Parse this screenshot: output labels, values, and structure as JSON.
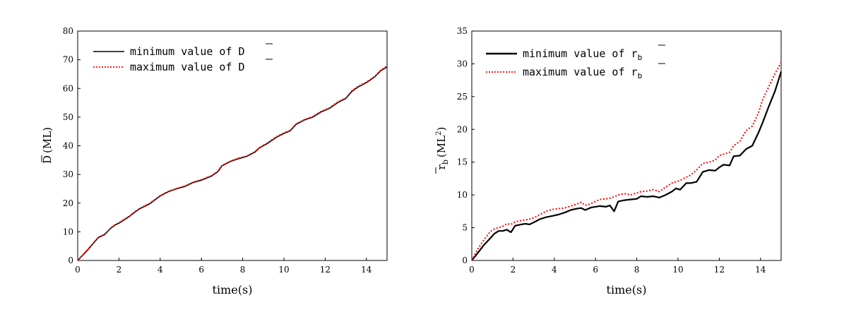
{
  "chart_data": [
    {
      "type": "line",
      "xlabel": "time(s)",
      "ylabel": "D (ML)",
      "ylabel_symbol": "D",
      "ylabel_unit": "(ML)",
      "xlim": [
        0,
        15
      ],
      "ylim": [
        0,
        80
      ],
      "xticks": [
        0,
        2,
        4,
        6,
        8,
        10,
        12,
        14
      ],
      "yticks": [
        0,
        10,
        20,
        30,
        40,
        50,
        60,
        70,
        80
      ],
      "grid": false,
      "legend_position": "top-left",
      "series": [
        {
          "name": "minimum value of D",
          "color": "#000000",
          "style": "solid",
          "x": [
            0,
            0.5,
            1.0,
            1.3,
            1.6,
            1.8,
            2.0,
            2.5,
            2.8,
            3.0,
            3.5,
            4.0,
            4.4,
            4.8,
            5.2,
            5.6,
            6.0,
            6.5,
            6.8,
            7.0,
            7.4,
            7.8,
            8.2,
            8.6,
            8.8,
            9.2,
            9.6,
            10.0,
            10.3,
            10.6,
            11.0,
            11.4,
            11.8,
            12.2,
            12.6,
            13.0,
            13.3,
            13.6,
            14.0,
            14.4,
            14.7,
            15.0
          ],
          "y": [
            0,
            3.8,
            8.0,
            9.0,
            11.2,
            12.3,
            13.0,
            15.3,
            17.0,
            18.0,
            19.8,
            22.5,
            24.0,
            25.0,
            25.8,
            27.2,
            28.0,
            29.5,
            31.0,
            33.0,
            34.5,
            35.5,
            36.3,
            37.8,
            39.2,
            40.8,
            42.8,
            44.3,
            45.2,
            47.5,
            49.0,
            50.0,
            51.8,
            53.0,
            55.0,
            56.5,
            59.0,
            60.5,
            62.0,
            64.0,
            66.2,
            67.5
          ]
        },
        {
          "name": "maximum value of D",
          "color": "#ff0000",
          "style": "dotted",
          "x": [
            0,
            0.5,
            1.0,
            1.3,
            1.6,
            1.8,
            2.0,
            2.5,
            2.8,
            3.0,
            3.5,
            4.0,
            4.4,
            4.8,
            5.2,
            5.6,
            6.0,
            6.5,
            6.8,
            7.0,
            7.4,
            7.8,
            8.2,
            8.6,
            8.8,
            9.2,
            9.6,
            10.0,
            10.3,
            10.6,
            11.0,
            11.4,
            11.8,
            12.2,
            12.6,
            13.0,
            13.3,
            13.6,
            14.0,
            14.4,
            14.7,
            15.0
          ],
          "y": [
            0,
            3.9,
            8.1,
            9.1,
            11.3,
            12.4,
            13.2,
            15.4,
            17.2,
            18.1,
            20.0,
            22.6,
            24.1,
            25.1,
            26.0,
            27.3,
            28.2,
            29.6,
            31.2,
            33.2,
            34.6,
            35.7,
            36.4,
            38.0,
            39.3,
            41.0,
            43.0,
            44.5,
            45.3,
            47.7,
            49.1,
            50.2,
            52.0,
            53.2,
            55.2,
            56.7,
            59.2,
            60.7,
            62.2,
            64.2,
            66.4,
            67.8
          ]
        }
      ]
    },
    {
      "type": "line",
      "xlabel": "time(s)",
      "ylabel": "r_b (ML^2)",
      "ylabel_symbol": "r",
      "ylabel_sub": "b",
      "ylabel_unit_base": "(ML",
      "ylabel_unit_sup": "2",
      "ylabel_unit_close": ")",
      "xlim": [
        0,
        15
      ],
      "ylim": [
        0,
        35
      ],
      "xticks": [
        0,
        2,
        4,
        6,
        8,
        10,
        12,
        14
      ],
      "yticks": [
        0,
        5,
        10,
        15,
        20,
        25,
        30,
        35
      ],
      "grid": false,
      "legend_position": "top-left",
      "series": [
        {
          "name": "minimum value of r_b",
          "color": "#000000",
          "style": "solid",
          "x": [
            0,
            0.3,
            0.6,
            0.9,
            1.1,
            1.3,
            1.5,
            1.7,
            1.9,
            2.1,
            2.4,
            2.6,
            2.8,
            3.0,
            3.3,
            3.6,
            3.9,
            4.2,
            4.5,
            4.8,
            5.1,
            5.3,
            5.5,
            5.8,
            6.0,
            6.2,
            6.5,
            6.7,
            6.9,
            7.1,
            7.4,
            7.7,
            8.0,
            8.2,
            8.5,
            8.8,
            9.1,
            9.4,
            9.7,
            9.9,
            10.1,
            10.4,
            10.6,
            10.9,
            11.2,
            11.5,
            11.8,
            12.0,
            12.2,
            12.5,
            12.7,
            13.0,
            13.3,
            13.6,
            13.9,
            14.1,
            14.4,
            14.7,
            15.0
          ],
          "y": [
            0,
            1.2,
            2.4,
            3.4,
            4.1,
            4.5,
            4.5,
            4.7,
            4.3,
            5.3,
            5.5,
            5.6,
            5.5,
            5.8,
            6.3,
            6.6,
            6.8,
            7.0,
            7.3,
            7.7,
            7.9,
            8.0,
            7.7,
            8.1,
            8.2,
            8.3,
            8.2,
            8.4,
            7.5,
            9.0,
            9.2,
            9.3,
            9.4,
            9.8,
            9.7,
            9.8,
            9.6,
            10.0,
            10.5,
            11.0,
            10.8,
            11.8,
            11.8,
            12.0,
            13.5,
            13.8,
            13.7,
            14.2,
            14.6,
            14.5,
            15.9,
            16.0,
            17.0,
            17.5,
            19.5,
            21.0,
            23.5,
            25.8,
            28.8
          ]
        },
        {
          "name": "maximum value of r_b",
          "color": "#ff0000",
          "style": "dotted",
          "x": [
            0,
            0.3,
            0.6,
            0.9,
            1.1,
            1.3,
            1.5,
            1.7,
            1.9,
            2.1,
            2.4,
            2.6,
            2.8,
            3.0,
            3.3,
            3.6,
            3.9,
            4.2,
            4.5,
            4.8,
            5.1,
            5.3,
            5.5,
            5.8,
            6.0,
            6.2,
            6.5,
            6.7,
            6.9,
            7.1,
            7.4,
            7.7,
            8.0,
            8.2,
            8.5,
            8.8,
            9.1,
            9.4,
            9.7,
            9.9,
            10.1,
            10.4,
            10.6,
            10.9,
            11.2,
            11.5,
            11.8,
            12.0,
            12.2,
            12.5,
            12.7,
            13.0,
            13.3,
            13.6,
            13.9,
            14.1,
            14.4,
            14.7,
            15.0
          ],
          "y": [
            0,
            1.8,
            3.2,
            4.4,
            4.8,
            5.0,
            5.2,
            5.6,
            5.5,
            5.9,
            6.1,
            6.2,
            6.3,
            6.5,
            7.0,
            7.5,
            7.8,
            7.9,
            8.0,
            8.3,
            8.6,
            8.9,
            8.4,
            8.7,
            9.0,
            9.3,
            9.4,
            9.5,
            9.7,
            10.0,
            10.2,
            10.0,
            10.3,
            10.5,
            10.6,
            10.8,
            10.5,
            11.2,
            11.8,
            12.0,
            12.2,
            12.7,
            13.0,
            13.8,
            14.8,
            15.0,
            15.3,
            16.0,
            16.2,
            16.5,
            17.5,
            18.2,
            19.8,
            20.5,
            22.5,
            24.5,
            26.5,
            28.5,
            30.2
          ]
        }
      ]
    }
  ],
  "legend": {
    "left_min_prefix": "minimum value of ",
    "left_max_prefix": "maximum value of ",
    "left_symbol": "D",
    "right_min_prefix": "minimum value of ",
    "right_max_prefix": "maximum value of ",
    "right_symbol": "r",
    "right_sub": "b"
  }
}
